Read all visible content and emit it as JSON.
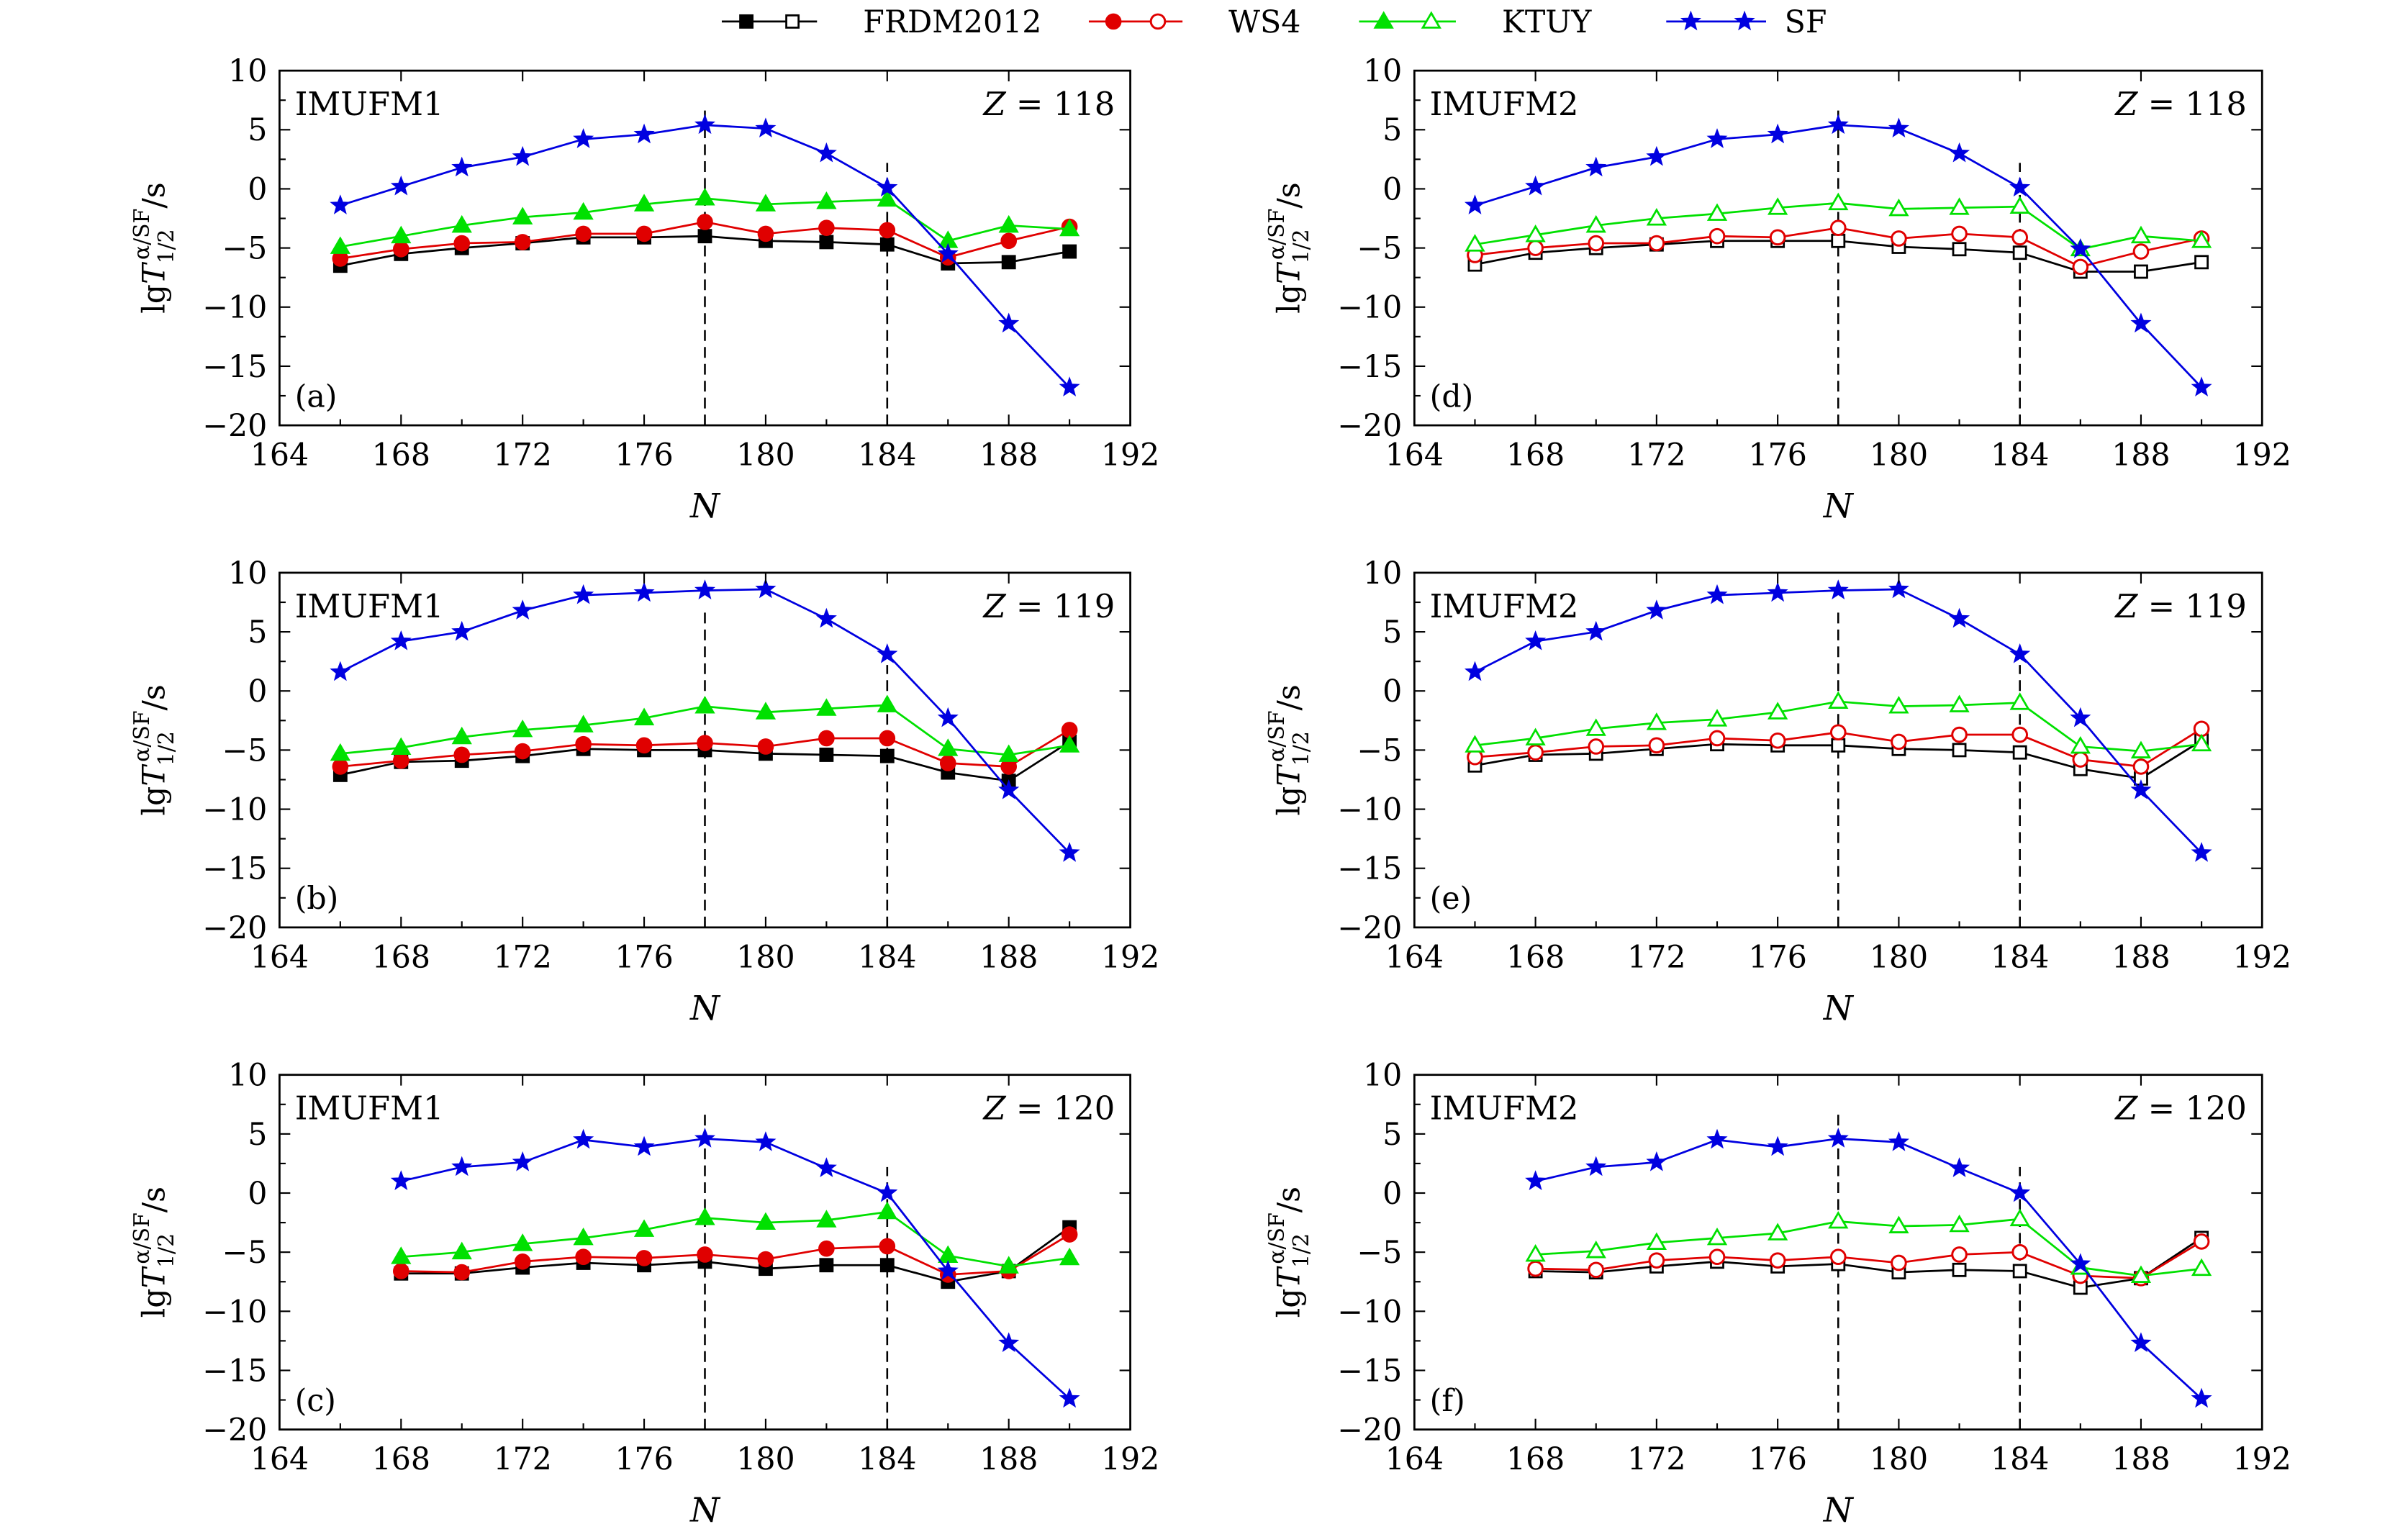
{
  "legend": [
    {
      "label": "FRDM2012",
      "color": "#000000",
      "marker_left": "square-filled",
      "marker_right": "square-open"
    },
    {
      "label": "WS4",
      "color": "#e00000",
      "marker_left": "circle-filled",
      "marker_right": "circle-open"
    },
    {
      "label": "KTUY",
      "color": "#00e000",
      "marker_left": "triangle-filled",
      "marker_right": "triangle-open"
    },
    {
      "label": "SF",
      "color": "#0000e0",
      "marker_left": "star-filled",
      "marker_right": "star-filled"
    }
  ],
  "chart_data": [
    {
      "type": "line",
      "panel": "(a)",
      "model": "IMUFM1",
      "z_label": "Z = 118",
      "filled": true,
      "xlabel": "N",
      "ylabel": "lgT_{1/2}^{α/SF}/s",
      "xlim": [
        164,
        192
      ],
      "ylim": [
        -20,
        10
      ],
      "xticks": [
        164,
        168,
        172,
        176,
        180,
        184,
        188,
        192
      ],
      "yticks": [
        -20,
        -15,
        -10,
        -5,
        0,
        5,
        10
      ],
      "dashed_lines": [
        178,
        184
      ],
      "x": [
        166,
        168,
        170,
        172,
        174,
        176,
        178,
        180,
        182,
        184,
        186,
        188,
        190
      ],
      "series": [
        {
          "name": "FRDM2012",
          "values": [
            -6.5,
            -5.5,
            -5.0,
            -4.6,
            -4.1,
            -4.1,
            -4.0,
            -4.4,
            -4.5,
            -4.7,
            -6.3,
            -6.2,
            -5.3
          ]
        },
        {
          "name": "WS4",
          "values": [
            -5.9,
            -5.1,
            -4.6,
            -4.5,
            -3.8,
            -3.8,
            -2.8,
            -3.8,
            -3.3,
            -3.5,
            -5.8,
            -4.4,
            -3.2
          ]
        },
        {
          "name": "KTUY",
          "values": [
            -4.9,
            -4.0,
            -3.1,
            -2.4,
            -2.0,
            -1.3,
            -0.8,
            -1.3,
            -1.1,
            -0.9,
            -4.4,
            -3.1,
            -3.4
          ]
        },
        {
          "name": "SF",
          "values": [
            -1.4,
            0.2,
            1.8,
            2.7,
            4.2,
            4.6,
            5.4,
            5.1,
            3.0,
            0.1,
            -5.5,
            -11.4,
            -16.8
          ]
        }
      ]
    },
    {
      "type": "line",
      "panel": "(b)",
      "model": "IMUFM1",
      "z_label": "Z = 119",
      "filled": true,
      "xlabel": "N",
      "ylabel": "lgT_{1/2}^{α/SF}/s",
      "xlim": [
        164,
        192
      ],
      "ylim": [
        -20,
        10
      ],
      "xticks": [
        164,
        168,
        172,
        176,
        180,
        184,
        188,
        192
      ],
      "yticks": [
        -20,
        -15,
        -10,
        -5,
        0,
        5,
        10
      ],
      "dashed_lines": [
        178,
        184
      ],
      "x": [
        166,
        168,
        170,
        172,
        174,
        176,
        178,
        180,
        182,
        184,
        186,
        188,
        190
      ],
      "series": [
        {
          "name": "FRDM2012",
          "values": [
            -7.1,
            -6.0,
            -5.9,
            -5.5,
            -4.9,
            -5.0,
            -5.0,
            -5.3,
            -5.4,
            -5.5,
            -6.9,
            -7.6,
            -4.3
          ]
        },
        {
          "name": "WS4",
          "values": [
            -6.4,
            -5.9,
            -5.4,
            -5.1,
            -4.5,
            -4.6,
            -4.4,
            -4.7,
            -4.0,
            -4.0,
            -6.1,
            -6.4,
            -3.3
          ]
        },
        {
          "name": "KTUY",
          "values": [
            -5.3,
            -4.8,
            -3.9,
            -3.3,
            -2.9,
            -2.3,
            -1.3,
            -1.8,
            -1.5,
            -1.2,
            -4.9,
            -5.4,
            -4.6
          ]
        },
        {
          "name": "SF",
          "values": [
            1.6,
            4.2,
            5.0,
            6.8,
            8.1,
            8.3,
            8.5,
            8.6,
            6.1,
            3.1,
            -2.3,
            -8.4,
            -13.7
          ]
        }
      ]
    },
    {
      "type": "line",
      "panel": "(c)",
      "model": "IMUFM1",
      "z_label": "Z = 120",
      "filled": true,
      "xlabel": "N",
      "ylabel": "lgT_{1/2}^{α/SF}/s",
      "xlim": [
        164,
        192
      ],
      "ylim": [
        -20,
        10
      ],
      "xticks": [
        164,
        168,
        172,
        176,
        180,
        184,
        188,
        192
      ],
      "yticks": [
        -20,
        -15,
        -10,
        -5,
        0,
        5,
        10
      ],
      "dashed_lines": [
        178,
        184
      ],
      "x": [
        168,
        170,
        172,
        174,
        176,
        178,
        180,
        182,
        184,
        186,
        188,
        190
      ],
      "series": [
        {
          "name": "FRDM2012",
          "values": [
            -6.8,
            -6.8,
            -6.3,
            -5.9,
            -6.1,
            -5.8,
            -6.4,
            -6.1,
            -6.1,
            -7.5,
            -6.6,
            -2.9
          ]
        },
        {
          "name": "WS4",
          "values": [
            -6.6,
            -6.7,
            -5.8,
            -5.4,
            -5.5,
            -5.2,
            -5.6,
            -4.7,
            -4.5,
            -6.9,
            -6.6,
            -3.5
          ]
        },
        {
          "name": "KTUY",
          "values": [
            -5.4,
            -5.0,
            -4.3,
            -3.8,
            -3.1,
            -2.1,
            -2.5,
            -2.3,
            -1.6,
            -5.3,
            -6.2,
            -5.5
          ]
        },
        {
          "name": "SF",
          "values": [
            1.0,
            2.2,
            2.6,
            4.5,
            3.9,
            4.6,
            4.3,
            2.1,
            0.0,
            -6.6,
            -12.7,
            -17.4
          ]
        }
      ]
    },
    {
      "type": "line",
      "panel": "(d)",
      "model": "IMUFM2",
      "z_label": "Z = 118",
      "filled": false,
      "xlabel": "N",
      "ylabel": "lgT_{1/2}^{α/SF}/s",
      "xlim": [
        164,
        192
      ],
      "ylim": [
        -20,
        10
      ],
      "xticks": [
        164,
        168,
        172,
        176,
        180,
        184,
        188,
        192
      ],
      "yticks": [
        -20,
        -15,
        -10,
        -5,
        0,
        5,
        10
      ],
      "dashed_lines": [
        178,
        184
      ],
      "x": [
        166,
        168,
        170,
        172,
        174,
        176,
        178,
        180,
        182,
        184,
        186,
        188,
        190
      ],
      "series": [
        {
          "name": "FRDM2012",
          "values": [
            -6.4,
            -5.4,
            -5.0,
            -4.7,
            -4.4,
            -4.4,
            -4.4,
            -4.9,
            -5.1,
            -5.4,
            -7.0,
            -7.0,
            -6.2
          ]
        },
        {
          "name": "WS4",
          "values": [
            -5.6,
            -5.0,
            -4.6,
            -4.6,
            -4.0,
            -4.1,
            -3.3,
            -4.2,
            -3.8,
            -4.1,
            -6.6,
            -5.3,
            -4.2
          ]
        },
        {
          "name": "KTUY",
          "values": [
            -4.7,
            -3.9,
            -3.1,
            -2.5,
            -2.1,
            -1.6,
            -1.2,
            -1.7,
            -1.6,
            -1.5,
            -5.1,
            -4.0,
            -4.4
          ]
        },
        {
          "name": "SF",
          "values": [
            -1.4,
            0.2,
            1.8,
            2.7,
            4.2,
            4.6,
            5.4,
            5.1,
            3.0,
            0.1,
            -5.1,
            -11.4,
            -16.8
          ]
        }
      ]
    },
    {
      "type": "line",
      "panel": "(e)",
      "model": "IMUFM2",
      "z_label": "Z = 119",
      "filled": false,
      "xlabel": "N",
      "ylabel": "lgT_{1/2}^{α/SF}/s",
      "xlim": [
        164,
        192
      ],
      "ylim": [
        -20,
        10
      ],
      "xticks": [
        164,
        168,
        172,
        176,
        180,
        184,
        188,
        192
      ],
      "yticks": [
        -20,
        -15,
        -10,
        -5,
        0,
        5,
        10
      ],
      "dashed_lines": [
        178,
        184
      ],
      "x": [
        166,
        168,
        170,
        172,
        174,
        176,
        178,
        180,
        182,
        184,
        186,
        188,
        190
      ],
      "series": [
        {
          "name": "FRDM2012",
          "values": [
            -6.3,
            -5.4,
            -5.3,
            -4.9,
            -4.5,
            -4.6,
            -4.6,
            -4.9,
            -5.0,
            -5.2,
            -6.6,
            -7.4,
            -4.2
          ]
        },
        {
          "name": "WS4",
          "values": [
            -5.6,
            -5.2,
            -4.7,
            -4.6,
            -4.0,
            -4.2,
            -3.5,
            -4.3,
            -3.7,
            -3.7,
            -5.8,
            -6.4,
            -3.2
          ]
        },
        {
          "name": "KTUY",
          "values": [
            -4.6,
            -4.0,
            -3.2,
            -2.7,
            -2.4,
            -1.8,
            -0.9,
            -1.3,
            -1.2,
            -1.0,
            -4.7,
            -5.1,
            -4.5
          ]
        },
        {
          "name": "SF",
          "values": [
            1.6,
            4.2,
            5.0,
            6.8,
            8.1,
            8.3,
            8.5,
            8.6,
            6.1,
            3.1,
            -2.3,
            -8.4,
            -13.7
          ]
        }
      ]
    },
    {
      "type": "line",
      "panel": "(f)",
      "model": "IMUFM2",
      "z_label": "Z = 120",
      "filled": false,
      "xlabel": "N",
      "ylabel": "lgT_{1/2}^{α/SF}/s",
      "xlim": [
        164,
        192
      ],
      "ylim": [
        -20,
        10
      ],
      "xticks": [
        164,
        168,
        172,
        176,
        180,
        184,
        188,
        192
      ],
      "yticks": [
        -20,
        -15,
        -10,
        -5,
        0,
        5,
        10
      ],
      "dashed_lines": [
        178,
        184
      ],
      "x": [
        168,
        170,
        172,
        174,
        176,
        178,
        180,
        182,
        184,
        186,
        188,
        190
      ],
      "series": [
        {
          "name": "FRDM2012",
          "values": [
            -6.6,
            -6.7,
            -6.2,
            -5.8,
            -6.2,
            -6.0,
            -6.7,
            -6.5,
            -6.6,
            -8.0,
            -7.2,
            -3.8
          ]
        },
        {
          "name": "WS4",
          "values": [
            -6.4,
            -6.5,
            -5.7,
            -5.4,
            -5.7,
            -5.4,
            -5.9,
            -5.2,
            -5.0,
            -7.0,
            -7.2,
            -4.1
          ]
        },
        {
          "name": "KTUY",
          "values": [
            -5.2,
            -4.9,
            -4.2,
            -3.8,
            -3.4,
            -2.4,
            -2.8,
            -2.7,
            -2.2,
            -6.3,
            -7.0,
            -6.4
          ]
        },
        {
          "name": "SF",
          "values": [
            1.0,
            2.2,
            2.6,
            4.5,
            3.9,
            4.6,
            4.3,
            2.1,
            0.0,
            -6.0,
            -12.7,
            -17.4
          ]
        }
      ]
    }
  ]
}
